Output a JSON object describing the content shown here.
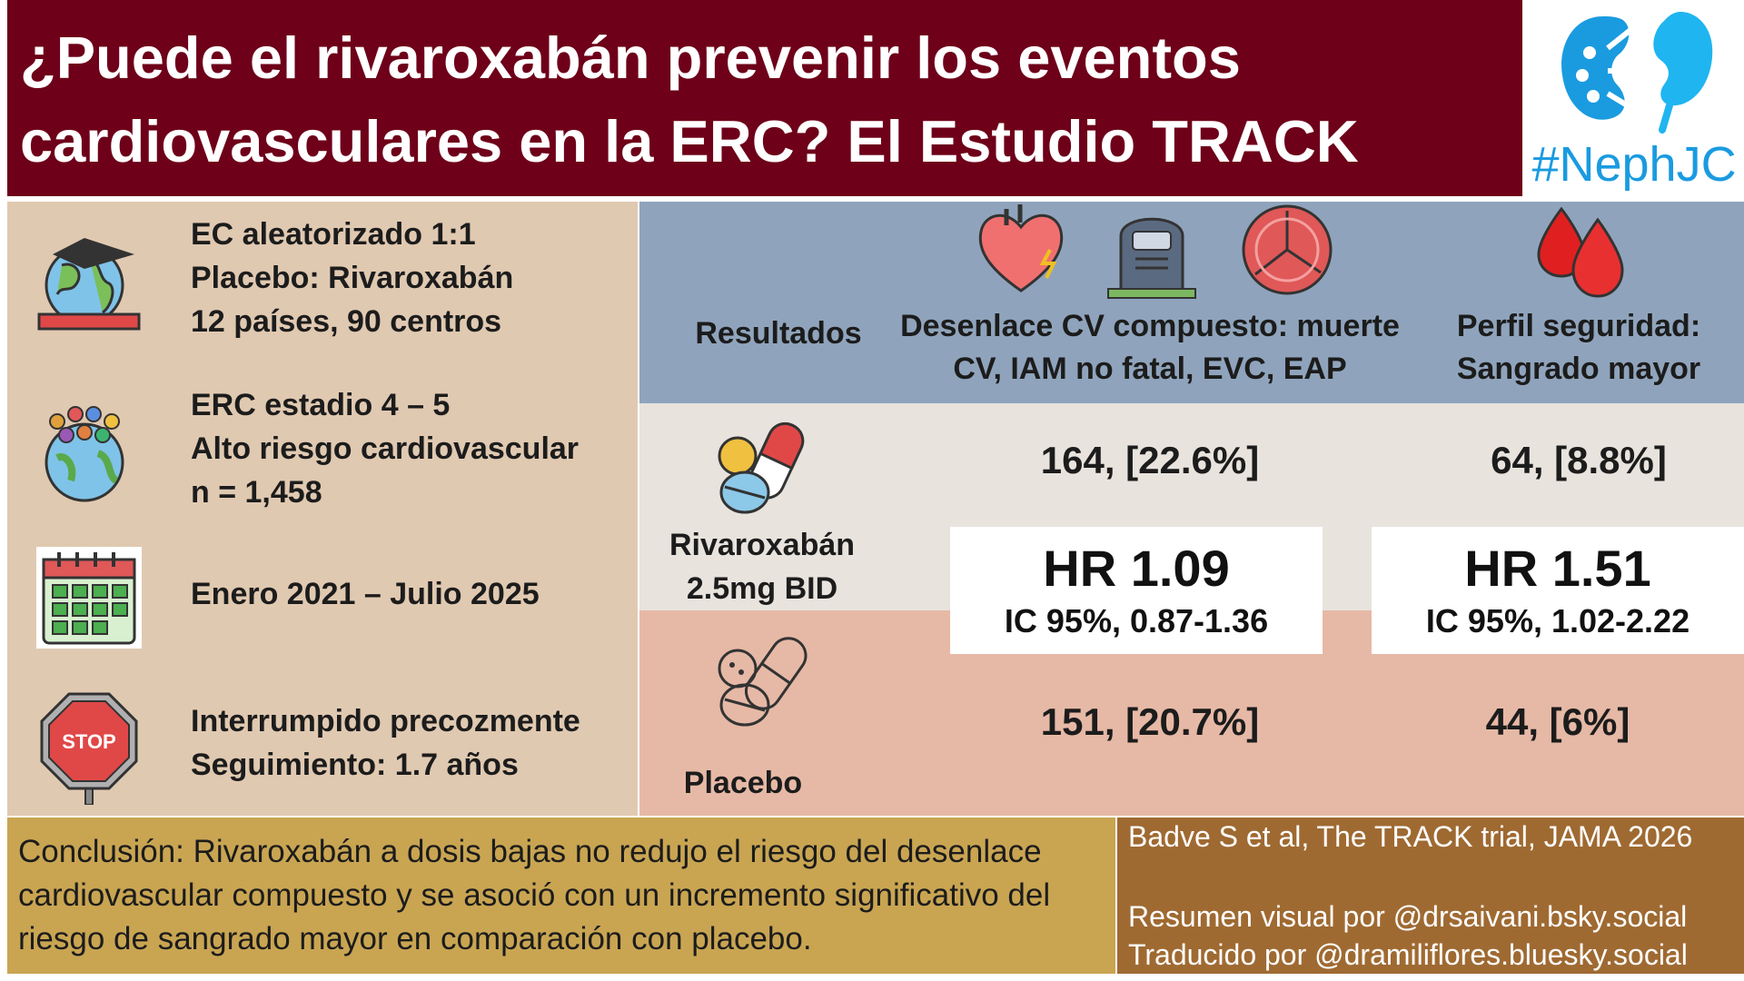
{
  "title": {
    "line1": "¿Puede el rivaroxabán prevenir los eventos",
    "line2": "cardiovasculares en la ERC? El Estudio TRACK"
  },
  "logo": {
    "text": "#NephJC",
    "icon": "kidney-icon",
    "color": "#1a9be0"
  },
  "left_panel": {
    "items": [
      {
        "icon": "globe-graduation-cap-icon",
        "lines": [
          "EC aleatorizado 1:1",
          "Placebo: Rivaroxabán",
          "12 países, 90 centros"
        ]
      },
      {
        "icon": "people-globe-icon",
        "lines": [
          "ERC estadio 4 – 5",
          "Alto riesgo cardiovascular",
          "n = 1,458"
        ]
      },
      {
        "icon": "calendar-icon",
        "lines": [
          "Enero 2021 – Julio 2025"
        ]
      },
      {
        "icon": "stop-sign-icon",
        "lines": [
          "Interrumpido precozmente",
          "Seguimiento: 1.7 años"
        ]
      }
    ]
  },
  "results": {
    "header_label": "Resultados",
    "col1_icons": [
      "heart-icon",
      "tombstone-icon",
      "brain-icon"
    ],
    "col1_header": [
      "Desenlace CV compuesto: muerte",
      "CV, IAM no fatal, EVC, EAP"
    ],
    "col2_icon": "blood-drops-icon",
    "col2_header": [
      "Perfil seguridad:",
      "Sangrado mayor"
    ],
    "rows": [
      {
        "label": [
          "Rivaroxabán",
          "2.5mg BID"
        ],
        "icon": "pills-colored-icon",
        "col1": "164, [22.6%]",
        "col2": "64, [8.8%]"
      },
      {
        "label": [
          "Placebo"
        ],
        "icon": "pills-outline-icon",
        "col1": "151, [20.7%]",
        "col2": "44, [6%]"
      }
    ],
    "hr": [
      {
        "main": "HR 1.09",
        "ci": "IC 95%, 0.87-1.36"
      },
      {
        "main": "HR 1.51",
        "ci": "IC 95%, 1.02-2.22"
      }
    ]
  },
  "conclusion": {
    "lines": [
      "Conclusión: Rivaroxabán a dosis bajas no redujo el riesgo del desenlace",
      "cardiovascular compuesto y se asoció con un incremento significativo del",
      "riesgo de sangrado mayor en comparación con placebo."
    ]
  },
  "credits": {
    "citation": "Badve S et al, The TRACK trial, JAMA 2026",
    "visual": "Resumen visual por @drsaivani.bsky.social",
    "translation": "Traducido por @dramiliflores.bluesky.social"
  },
  "colors": {
    "title_bg": "#6e0019",
    "left_bg": "#e0c9b1",
    "results_header_bg": "#8fa4bc",
    "rivaroxaban_row_bg": "#e8e3dd",
    "placebo_row_bg": "#e6b9a6",
    "conclusion_bg": "#c9a552",
    "credits_bg": "#9f6a32"
  }
}
